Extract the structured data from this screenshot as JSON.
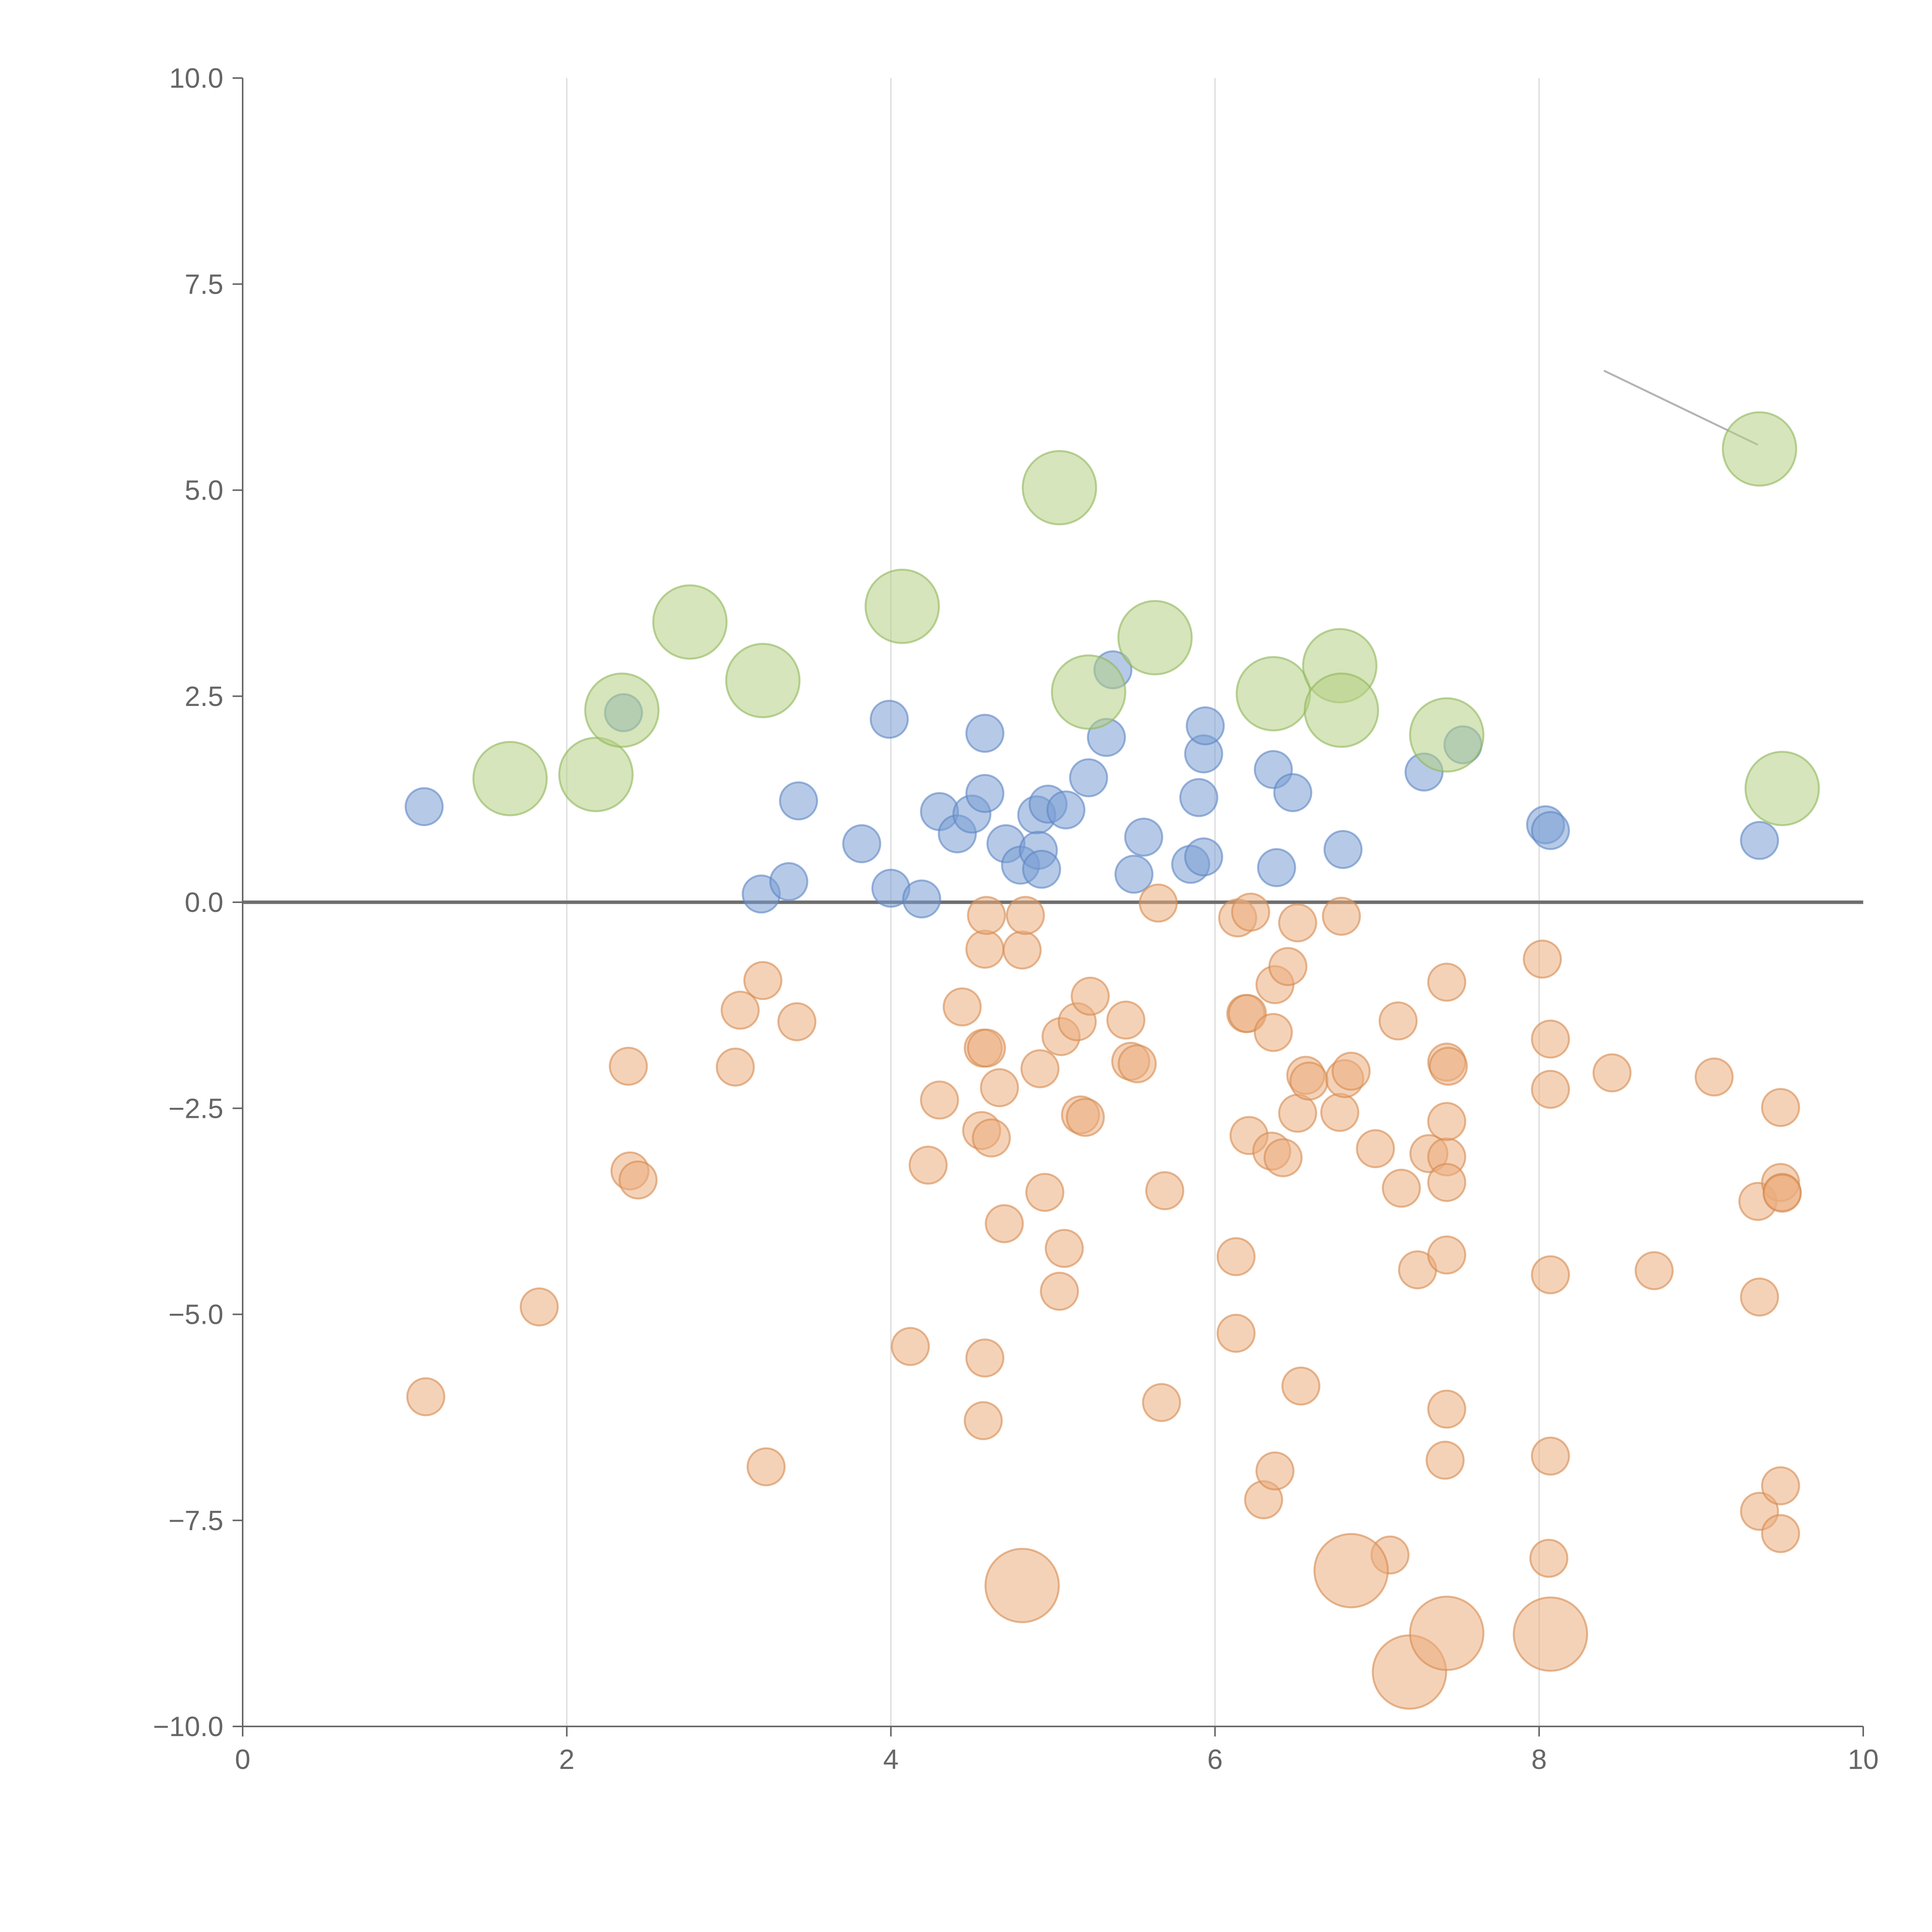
{
  "chart_data": {
    "type": "scatter",
    "title": "",
    "xlabel": "",
    "ylabel": "",
    "xlim": [
      0,
      10
    ],
    "ylim": [
      -10,
      10
    ],
    "x_ticks": [
      0,
      2,
      4,
      6,
      8,
      10
    ],
    "y_ticks": [
      -10,
      -7.5,
      -5,
      -2.5,
      0,
      2.5,
      5,
      7.5,
      10
    ],
    "x_tick_labels": [
      "0",
      "2",
      "4",
      "6",
      "8",
      "10"
    ],
    "y_tick_labels": [
      "−10.0",
      "−7.5",
      "−5.0",
      "−2.5",
      "0.0",
      "2.5",
      "5.0",
      "7.5",
      "10.0"
    ],
    "grid": "vertical",
    "reference_line_y": 0,
    "marker_size_meaning": "larger circles mark larger-magnitude points",
    "series": [
      {
        "color": "#7a9fd4",
        "stroke": "#5e86c4",
        "size": "medium",
        "points": [
          [
            1.12,
            1.16
          ],
          [
            2.35,
            2.3
          ],
          [
            3.2,
            0.1
          ],
          [
            3.37,
            0.25
          ],
          [
            3.43,
            1.23
          ],
          [
            3.82,
            0.71
          ],
          [
            3.99,
            2.22
          ],
          [
            4.0,
            0.17
          ],
          [
            4.19,
            0.04
          ],
          [
            4.3,
            1.1
          ],
          [
            4.41,
            0.83
          ],
          [
            4.5,
            1.07
          ],
          [
            4.58,
            2.05
          ],
          [
            4.58,
            1.32
          ],
          [
            4.71,
            0.71
          ],
          [
            4.8,
            0.45
          ],
          [
            4.9,
            1.06
          ],
          [
            4.91,
            0.63
          ],
          [
            4.93,
            0.4
          ],
          [
            4.97,
            1.19
          ],
          [
            5.08,
            1.12
          ],
          [
            5.22,
            1.51
          ],
          [
            5.33,
            2.0
          ],
          [
            5.37,
            2.82
          ],
          [
            5.5,
            0.34
          ],
          [
            5.56,
            0.79
          ],
          [
            5.85,
            0.46
          ],
          [
            5.9,
            1.27
          ],
          [
            5.93,
            0.55
          ],
          [
            5.93,
            1.8
          ],
          [
            5.94,
            2.14
          ],
          [
            6.36,
            1.61
          ],
          [
            6.38,
            0.42
          ],
          [
            6.48,
            1.33
          ],
          [
            6.79,
            0.64
          ],
          [
            7.29,
            1.58
          ],
          [
            7.53,
            1.91
          ],
          [
            8.04,
            0.94
          ],
          [
            8.07,
            0.87
          ],
          [
            9.36,
            0.75
          ]
        ]
      },
      {
        "color": "#b4cf84",
        "stroke": "#8fb55a",
        "size": "large",
        "points": [
          [
            1.65,
            1.5
          ],
          [
            2.18,
            1.55
          ],
          [
            2.34,
            2.33
          ],
          [
            2.76,
            3.4
          ],
          [
            3.21,
            2.69
          ],
          [
            4.07,
            3.59
          ],
          [
            5.04,
            5.03
          ],
          [
            5.22,
            2.55
          ],
          [
            5.63,
            3.21
          ],
          [
            6.36,
            2.53
          ],
          [
            6.77,
            2.87
          ],
          [
            6.78,
            2.33
          ],
          [
            7.43,
            2.03
          ],
          [
            9.36,
            5.5
          ],
          [
            9.5,
            1.38
          ]
        ]
      },
      {
        "color": "#ebad7e",
        "stroke": "#d68a4f",
        "size": "medium",
        "points": [
          [
            1.13,
            -6.0
          ],
          [
            1.83,
            -4.91
          ],
          [
            2.38,
            -1.99
          ],
          [
            2.39,
            -3.26
          ],
          [
            2.44,
            -3.37
          ],
          [
            3.04,
            -2.0
          ],
          [
            3.07,
            -1.31
          ],
          [
            3.21,
            -0.95
          ],
          [
            3.23,
            -6.85
          ],
          [
            3.42,
            -1.45
          ],
          [
            4.12,
            -5.39
          ],
          [
            4.23,
            -3.19
          ],
          [
            4.3,
            -2.4
          ],
          [
            4.44,
            -1.27
          ],
          [
            4.56,
            -2.77
          ],
          [
            4.57,
            -6.29
          ],
          [
            4.57,
            -1.77
          ],
          [
            4.58,
            -5.53
          ],
          [
            4.58,
            -0.57
          ],
          [
            4.59,
            -0.16
          ],
          [
            4.59,
            -1.77
          ],
          [
            4.62,
            -2.86
          ],
          [
            4.67,
            -2.25
          ],
          [
            4.7,
            -3.9
          ],
          [
            4.81,
            -0.58
          ],
          [
            4.83,
            -0.16
          ],
          [
            4.92,
            -2.02
          ],
          [
            4.95,
            -3.52
          ],
          [
            5.04,
            -4.72
          ],
          [
            5.05,
            -1.63
          ],
          [
            5.07,
            -4.2
          ],
          [
            5.15,
            -1.45
          ],
          [
            5.17,
            -2.58
          ],
          [
            5.2,
            -2.61
          ],
          [
            5.23,
            -1.14
          ],
          [
            5.45,
            -1.43
          ],
          [
            5.48,
            -1.93
          ],
          [
            5.52,
            -1.96
          ],
          [
            5.65,
            -0.01
          ],
          [
            5.67,
            -6.07
          ],
          [
            5.69,
            -3.5
          ],
          [
            6.13,
            -5.23
          ],
          [
            6.13,
            -4.3
          ],
          [
            6.14,
            -0.19
          ],
          [
            6.19,
            -1.35
          ],
          [
            6.2,
            -1.35
          ],
          [
            6.21,
            -2.83
          ],
          [
            6.22,
            -0.12
          ],
          [
            6.3,
            -7.25
          ],
          [
            6.35,
            -3.02
          ],
          [
            6.36,
            -1.58
          ],
          [
            6.37,
            -1.0
          ],
          [
            6.37,
            -6.9
          ],
          [
            6.42,
            -3.1
          ],
          [
            6.45,
            -0.78
          ],
          [
            6.51,
            -2.56
          ],
          [
            6.51,
            -0.25
          ],
          [
            6.53,
            -5.87
          ],
          [
            6.56,
            -2.1
          ],
          [
            6.58,
            -2.17
          ],
          [
            6.77,
            -2.55
          ],
          [
            6.78,
            -0.17
          ],
          [
            6.8,
            -2.14
          ],
          [
            6.84,
            -2.05
          ],
          [
            6.99,
            -2.99
          ],
          [
            7.08,
            -7.92
          ],
          [
            7.13,
            -1.44
          ],
          [
            7.15,
            -3.47
          ],
          [
            7.25,
            -4.46
          ],
          [
            7.32,
            -3.05
          ],
          [
            7.42,
            -6.77
          ],
          [
            7.43,
            -3.09
          ],
          [
            7.43,
            -1.94
          ],
          [
            7.43,
            -4.28
          ],
          [
            7.43,
            -3.4
          ],
          [
            7.43,
            -0.97
          ],
          [
            7.43,
            -6.15
          ],
          [
            7.43,
            -2.66
          ],
          [
            7.44,
            -1.99
          ],
          [
            8.02,
            -0.69
          ],
          [
            8.06,
            -7.96
          ],
          [
            8.07,
            -6.72
          ],
          [
            8.07,
            -2.27
          ],
          [
            8.07,
            -4.52
          ],
          [
            8.07,
            -1.66
          ],
          [
            8.45,
            -2.07
          ],
          [
            8.71,
            -4.47
          ],
          [
            9.08,
            -2.12
          ],
          [
            9.35,
            -3.63
          ],
          [
            9.36,
            -4.79
          ],
          [
            9.36,
            -7.39
          ],
          [
            9.49,
            -7.66
          ],
          [
            9.49,
            -7.08
          ],
          [
            9.49,
            -3.4
          ],
          [
            9.49,
            -2.49
          ],
          [
            9.5,
            -3.52
          ],
          [
            9.5,
            -3.53
          ]
        ]
      },
      {
        "color": "#ebad7e",
        "stroke": "#d68a4f",
        "size": "large",
        "points": [
          [
            4.81,
            -8.29
          ],
          [
            6.84,
            -8.11
          ],
          [
            7.2,
            -9.34
          ],
          [
            7.43,
            -8.87
          ],
          [
            8.07,
            -8.88
          ]
        ]
      }
    ],
    "connector_lines": [
      [
        [
          9.35,
          5.55
        ],
        [
          8.4,
          6.45
        ]
      ]
    ]
  }
}
